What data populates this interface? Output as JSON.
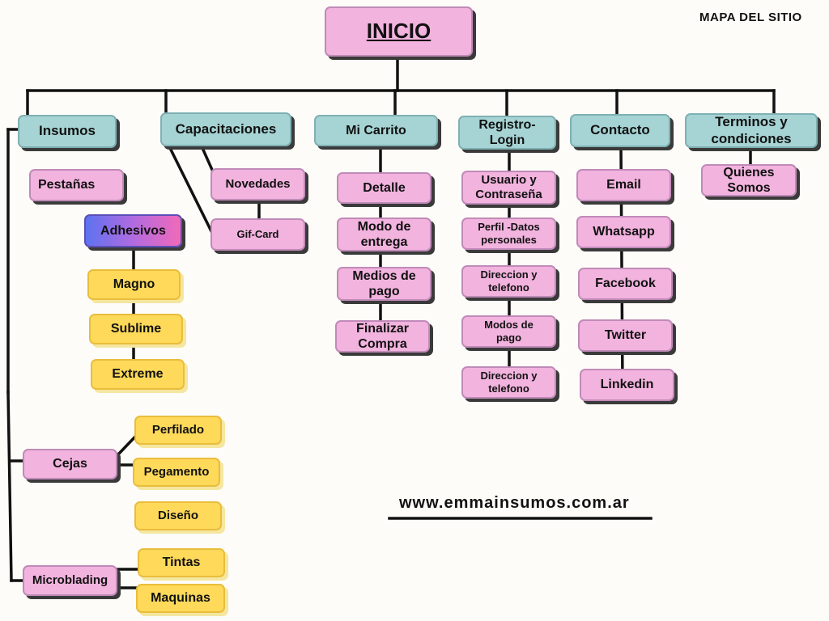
{
  "header": {
    "site_map_label": "MAPA DEL SITIO"
  },
  "root": {
    "label": "INICIO"
  },
  "sections": {
    "insumos": {
      "label": "Insumos",
      "pestanas": "Pestañas",
      "adhesivos": {
        "label": "Adhesivos",
        "items": [
          "Magno",
          "Sublime",
          "Extreme"
        ]
      },
      "cejas": {
        "label": "Cejas",
        "items": [
          "Perfilado",
          "Pegamento",
          "Diseño"
        ]
      },
      "microblading": {
        "label": "Microblading",
        "items": [
          "Tintas",
          "Maquinas"
        ]
      }
    },
    "capacitaciones": {
      "label": "Capacitaciones",
      "items": [
        "Novedades",
        "Gif-Card"
      ]
    },
    "carrito": {
      "label": "Mi Carrito",
      "items": [
        "Detalle",
        "Modo de entrega",
        "Medios de pago",
        "Finalizar Compra"
      ]
    },
    "registro": {
      "label": "Registro- Login",
      "items": [
        "Usuario y Contraseña",
        "Perfil -Datos personales",
        "Direccion y telefono",
        "Modos de pago",
        "Direccion y telefono"
      ]
    },
    "contacto": {
      "label": "Contacto",
      "items": [
        "Email",
        "Whatsapp",
        "Facebook",
        "Twitter",
        "Linkedin"
      ]
    },
    "terminos": {
      "label": "Terminos y condiciones",
      "items": [
        "Quienes Somos"
      ]
    }
  },
  "footer": {
    "url": "www.emmainsumos.com.ar"
  },
  "colors": {
    "pink": "#f2b3de",
    "teal": "#a6d3d4",
    "yellow": "#fed95a",
    "line": "#111111"
  }
}
